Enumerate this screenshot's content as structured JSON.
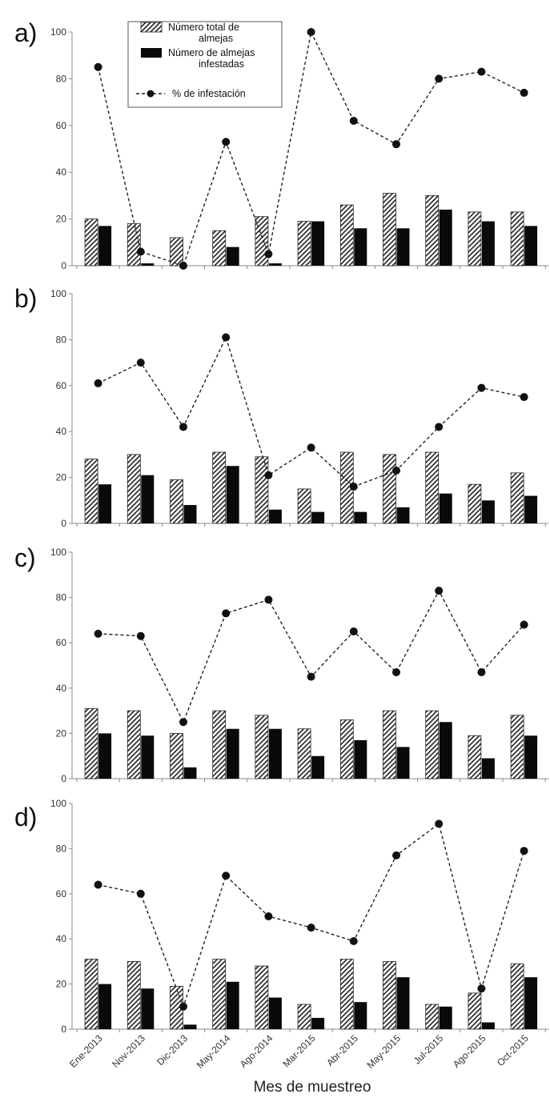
{
  "chart_data": [
    {
      "type": "bar",
      "panel_label": "a)",
      "categories": [
        "Ene-2013",
        "Nov-2013",
        "Dic-2013",
        "May-2014",
        "Ago-2014",
        "Mar-2015",
        "Abr-2015",
        "May-2015",
        "Jul-2015",
        "Ago-2015",
        "Oct-2015"
      ],
      "ylim": [
        0,
        100
      ],
      "yticks": [
        "0",
        "20",
        "40",
        "60",
        "80",
        "100"
      ],
      "series": [
        {
          "name": "Número total de almejas",
          "kind": "bar",
          "pattern": "hatched",
          "values": [
            20,
            18,
            12,
            15,
            21,
            19,
            26,
            31,
            30,
            23,
            23
          ]
        },
        {
          "name": "Número de almejas infestadas",
          "kind": "bar",
          "pattern": "solid",
          "values": [
            17,
            1,
            0,
            8,
            1,
            19,
            16,
            16,
            24,
            19,
            17
          ]
        },
        {
          "name": "% de infestación",
          "kind": "line",
          "style": "dashed",
          "values": [
            85,
            6,
            0,
            53,
            5,
            100,
            62,
            52,
            80,
            83,
            74
          ]
        }
      ],
      "legend": {
        "placement": "top-center",
        "entries": [
          {
            "lines": [
              "Número total de",
              "almejas"
            ],
            "marker": "hatched"
          },
          {
            "lines": [
              "Número de almejas",
              "infestadas"
            ],
            "marker": "solid"
          },
          {
            "lines": [
              "% de infestación"
            ],
            "marker": "dashed-line"
          }
        ]
      }
    },
    {
      "type": "bar",
      "panel_label": "b)",
      "categories": [
        "Ene-2013",
        "Nov-2013",
        "Dic-2013",
        "May-2014",
        "Ago-2014",
        "Mar-2015",
        "Abr-2015",
        "May-2015",
        "Jul-2015",
        "Ago-2015",
        "Oct-2015"
      ],
      "ylim": [
        0,
        100
      ],
      "yticks": [
        "0",
        "20",
        "40",
        "60",
        "80",
        "100"
      ],
      "series": [
        {
          "name": "Número total de almejas",
          "kind": "bar",
          "pattern": "hatched",
          "values": [
            28,
            30,
            19,
            31,
            29,
            15,
            31,
            30,
            31,
            17,
            22
          ]
        },
        {
          "name": "Número de almejas infestadas",
          "kind": "bar",
          "pattern": "solid",
          "values": [
            17,
            21,
            8,
            25,
            6,
            5,
            5,
            7,
            13,
            10,
            12
          ]
        },
        {
          "name": "% de infestación",
          "kind": "line",
          "style": "dashed",
          "values": [
            61,
            70,
            42,
            81,
            21,
            33,
            16,
            23,
            42,
            59,
            55
          ]
        }
      ]
    },
    {
      "type": "bar",
      "panel_label": "c)",
      "categories": [
        "Ene-2013",
        "Nov-2013",
        "Dic-2013",
        "May-2014",
        "Ago-2014",
        "Mar-2015",
        "Abr-2015",
        "May-2015",
        "Jul-2015",
        "Ago-2015",
        "Oct-2015"
      ],
      "ylim": [
        0,
        100
      ],
      "yticks": [
        "0",
        "20",
        "40",
        "60",
        "80",
        "100"
      ],
      "series": [
        {
          "name": "Número total de almejas",
          "kind": "bar",
          "pattern": "hatched",
          "values": [
            31,
            30,
            20,
            30,
            28,
            22,
            26,
            30,
            30,
            19,
            28
          ]
        },
        {
          "name": "Número de almejas infestadas",
          "kind": "bar",
          "pattern": "solid",
          "values": [
            20,
            19,
            5,
            22,
            22,
            10,
            17,
            14,
            25,
            9,
            19
          ]
        },
        {
          "name": "% de infestación",
          "kind": "line",
          "style": "dashed",
          "values": [
            64,
            63,
            25,
            73,
            79,
            45,
            65,
            47,
            83,
            47,
            68
          ]
        }
      ]
    },
    {
      "type": "bar",
      "panel_label": "d)",
      "categories": [
        "Ene-2013",
        "Nov-2013",
        "Dic-2013",
        "May-2014",
        "Ago-2014",
        "Mar-2015",
        "Abr-2015",
        "May-2015",
        "Jul-2015",
        "Ago-2015",
        "Oct-2015"
      ],
      "ylim": [
        0,
        100
      ],
      "yticks": [
        "0",
        "20",
        "40",
        "60",
        "80",
        "100"
      ],
      "xlabel": "Mes de muestreo",
      "series": [
        {
          "name": "Número total de almejas",
          "kind": "bar",
          "pattern": "hatched",
          "values": [
            31,
            30,
            19,
            31,
            28,
            11,
            31,
            30,
            11,
            16,
            29
          ]
        },
        {
          "name": "Número de almejas infestadas",
          "kind": "bar",
          "pattern": "solid",
          "values": [
            20,
            18,
            2,
            21,
            14,
            5,
            12,
            23,
            10,
            3,
            23
          ]
        },
        {
          "name": "% de infestación",
          "kind": "line",
          "style": "dashed",
          "values": [
            64,
            60,
            10,
            68,
            50,
            45,
            39,
            77,
            91,
            18,
            79
          ]
        }
      ]
    }
  ],
  "colors": {
    "bar_solid": "#0a0a0a",
    "hatch_stroke": "#222222",
    "line": "#222222",
    "axis": "#888888",
    "text": "#333333"
  }
}
